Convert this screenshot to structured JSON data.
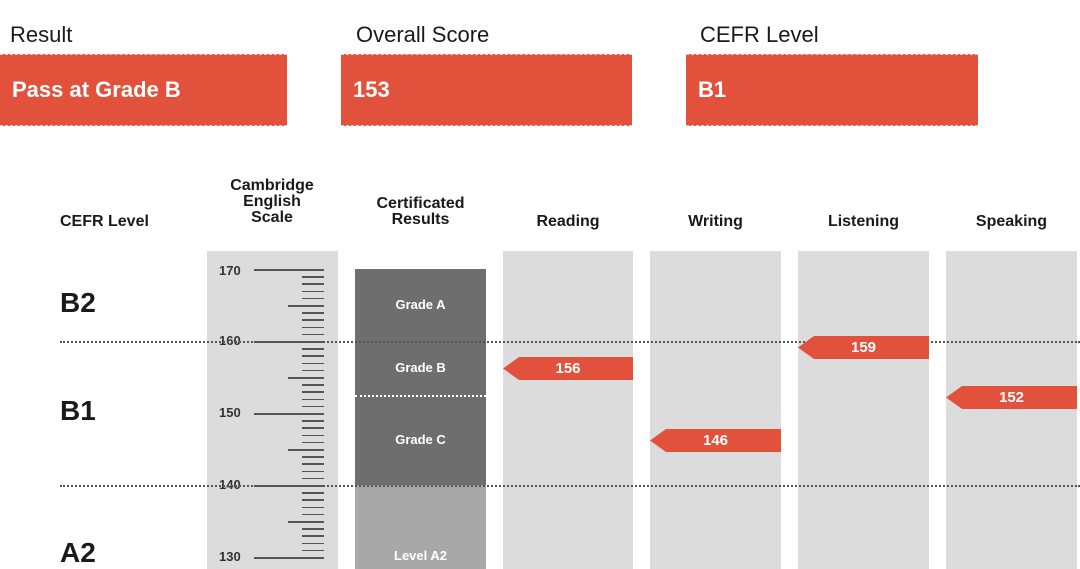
{
  "summary": {
    "result_label": "Result",
    "result_value": "Pass at Grade B",
    "score_label": "Overall Score",
    "score_value": "153",
    "cefr_label": "CEFR Level",
    "cefr_value": "B1"
  },
  "headers": {
    "cefr_level": "CEFR Level",
    "scale_line1": "Cambridge",
    "scale_line2": "English",
    "scale_line3": "Scale",
    "cert_line1": "Certificated",
    "cert_line2": "Results",
    "reading": "Reading",
    "writing": "Writing",
    "listening": "Listening",
    "speaking": "Speaking"
  },
  "cefr_levels": {
    "b2": "B2",
    "b1": "B1",
    "a2": "A2"
  },
  "scale_ticks": {
    "t170": "170",
    "t160": "160",
    "t150": "150",
    "t140": "140",
    "t130": "130"
  },
  "grades": {
    "grade_a": "Grade A",
    "grade_b": "Grade B",
    "grade_c": "Grade C",
    "level_a2": "Level A2"
  },
  "scores": {
    "reading": "156",
    "writing": "146",
    "listening": "159",
    "speaking": "152"
  },
  "colors": {
    "accent": "#e2513b",
    "column_bg": "#dcdcdc",
    "cert_dark": "#6e6e6e",
    "cert_light": "#a8a8a8"
  }
}
